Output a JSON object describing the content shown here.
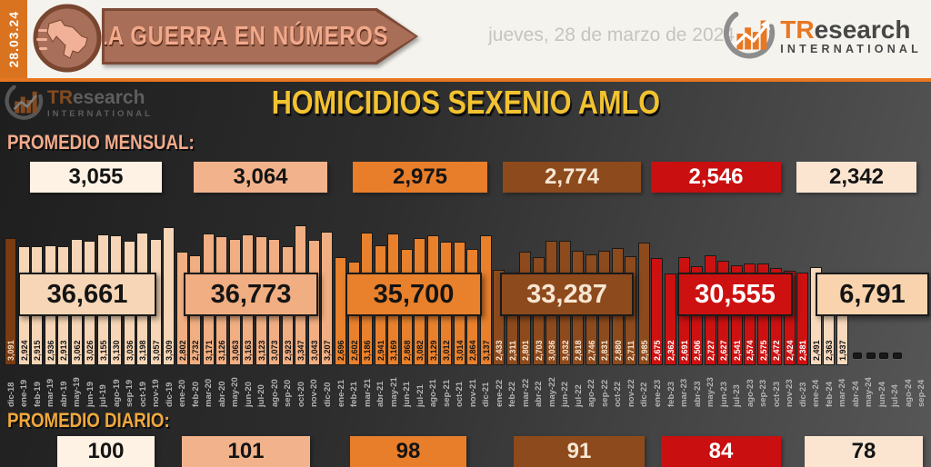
{
  "header": {
    "date_vertical": "28.03.24",
    "banner_title": "LA GUERRA EN NÚMEROS",
    "date_long": "jueves, 28 de marzo de 2024",
    "brand": {
      "tr": "TR",
      "rest": "esearch",
      "subtitle": "INTERNATIONAL"
    }
  },
  "main": {
    "title": "HOMICIDIOS SEXENIO AMLO",
    "monthly_avg_label": "PROMEDIO MENSUAL:",
    "daily_avg_label": "PROMEDIO DIARIO:"
  },
  "chart_data": {
    "type": "bar",
    "title": "HOMICIDIOS SEXENIO AMLO",
    "x_labels": [
      "dic-18",
      "ene-19",
      "feb-19",
      "mar-19",
      "abr-19",
      "may-19",
      "jun-19",
      "jul-19",
      "ago-19",
      "sep-19",
      "oct-19",
      "nov-19",
      "dic-19",
      "ene-20",
      "feb-20",
      "mar-20",
      "abr-20",
      "may-20",
      "jun-20",
      "jul-20",
      "ago-20",
      "sep-20",
      "oct-20",
      "nov-20",
      "dic-20",
      "ene-21",
      "feb-21",
      "mar-21",
      "abr-21",
      "may-21",
      "jun-21",
      "jul-21",
      "ago-21",
      "sep-21",
      "oct-21",
      "nov-21",
      "dic-21",
      "ene-22",
      "feb-22",
      "mar-22",
      "abr-22",
      "may-22",
      "jun-22",
      "jul-22",
      "ago-22",
      "sep-22",
      "oct-22",
      "nov-22",
      "dic-22",
      "ene-23",
      "feb-23",
      "mar-23",
      "abr-23",
      "may-23",
      "jun-23",
      "jul-23",
      "ago-23",
      "sep-23",
      "oct-23",
      "nov-23",
      "dic-23",
      "ene-24",
      "feb-24",
      "mar-24",
      "abr-24",
      "may-24",
      "jun-24",
      "jul-24",
      "ago-24",
      "sep-24"
    ],
    "bars": [
      {
        "month": "dic-18",
        "value": 3091
      },
      {
        "month": "ene-19",
        "value": 2924
      },
      {
        "month": "feb-19",
        "value": 2915
      },
      {
        "month": "mar-19",
        "value": 2936
      },
      {
        "month": "abr-19",
        "value": 2913
      },
      {
        "month": "may-19",
        "value": 3062
      },
      {
        "month": "jun-19",
        "value": 3026
      },
      {
        "month": "jul-19",
        "value": 3155
      },
      {
        "month": "ago-19",
        "value": 3130
      },
      {
        "month": "sep-19",
        "value": 3036
      },
      {
        "month": "oct-19",
        "value": 3198
      },
      {
        "month": "nov-19",
        "value": 3057
      },
      {
        "month": "dic-19",
        "value": 3309
      },
      {
        "month": "ene-20",
        "value": 2802
      },
      {
        "month": "feb-20",
        "value": 2732
      },
      {
        "month": "mar-20",
        "value": 3171
      },
      {
        "month": "abr-20",
        "value": 3126
      },
      {
        "month": "may-20",
        "value": 3063
      },
      {
        "month": "jun-20",
        "value": 3163
      },
      {
        "month": "jul-20",
        "value": 3123
      },
      {
        "month": "ago-20",
        "value": 3073
      },
      {
        "month": "sep-20",
        "value": 2923
      },
      {
        "month": "oct-20",
        "value": 3347
      },
      {
        "month": "nov-20",
        "value": 3043
      },
      {
        "month": "dic-20",
        "value": 3207
      },
      {
        "month": "ene-21",
        "value": 2696
      },
      {
        "month": "feb-21",
        "value": 2602
      },
      {
        "month": "mar-21",
        "value": 3186
      },
      {
        "month": "abr-21",
        "value": 2941
      },
      {
        "month": "may-21",
        "value": 3169
      },
      {
        "month": "jun-21",
        "value": 2868
      },
      {
        "month": "jul-21",
        "value": 3082
      },
      {
        "month": "ago-21",
        "value": 3129
      },
      {
        "month": "sep-21",
        "value": 3012
      },
      {
        "month": "oct-21",
        "value": 3014
      },
      {
        "month": "nov-21",
        "value": 2864
      },
      {
        "month": "dic-21",
        "value": 3137
      },
      {
        "month": "ene-22",
        "value": 2433
      },
      {
        "month": "feb-22",
        "value": 2311
      },
      {
        "month": "mar-22",
        "value": 2801
      },
      {
        "month": "abr-22",
        "value": 2703
      },
      {
        "month": "may-22",
        "value": 3036
      },
      {
        "month": "jun-22",
        "value": 3032
      },
      {
        "month": "jul-22",
        "value": 2818
      },
      {
        "month": "ago-22",
        "value": 2746
      },
      {
        "month": "sep-22",
        "value": 2831
      },
      {
        "month": "oct-22",
        "value": 2880
      },
      {
        "month": "nov-22",
        "value": 2711
      },
      {
        "month": "dic-22",
        "value": 2985
      },
      {
        "month": "ene-23",
        "value": 2675
      },
      {
        "month": "feb-23",
        "value": 2362
      },
      {
        "month": "mar-23",
        "value": 2691
      },
      {
        "month": "abr-23",
        "value": 2506
      },
      {
        "month": "may-23",
        "value": 2727
      },
      {
        "month": "jun-23",
        "value": 2627
      },
      {
        "month": "jul-23",
        "value": 2541
      },
      {
        "month": "ago-23",
        "value": 2574
      },
      {
        "month": "sep-23",
        "value": 2575
      },
      {
        "month": "oct-23",
        "value": 2472
      },
      {
        "month": "nov-23",
        "value": 2424
      },
      {
        "month": "dic-23",
        "value": 2381
      },
      {
        "month": "ene-24",
        "value": 2491
      },
      {
        "month": "feb-24",
        "value": 2363
      },
      {
        "month": "mar-24",
        "value": 1937
      }
    ],
    "placeholder_months": [
      "abr-24",
      "may-24",
      "jun-24",
      "jul-24"
    ],
    "year_totals": [
      {
        "year": "2019",
        "value": 36661,
        "bg": "#f6d6b6",
        "fg": "#141414"
      },
      {
        "year": "2020",
        "value": 36773,
        "bg": "#f0ae82",
        "fg": "#141414"
      },
      {
        "year": "2021",
        "value": 35700,
        "bg": "#e8802c",
        "fg": "#141414"
      },
      {
        "year": "2022",
        "value": 33287,
        "bg": "#8d4a1d",
        "fg": "#f7e6d2"
      },
      {
        "year": "2023",
        "value": 30555,
        "bg": "#cd1111",
        "fg": "#ffffff"
      },
      {
        "year": "2024",
        "value": 6791,
        "bg": "#f8d3ae",
        "fg": "#141414"
      }
    ],
    "monthly_averages": [
      {
        "value": 3055,
        "palette": "cream"
      },
      {
        "value": 3064,
        "palette": "peach"
      },
      {
        "value": 2975,
        "palette": "orange"
      },
      {
        "value": 2774,
        "palette": "brown"
      },
      {
        "value": 2546,
        "palette": "red"
      },
      {
        "value": 2342,
        "palette": "light"
      }
    ],
    "daily_averages": [
      {
        "value": 100,
        "palette": "cream"
      },
      {
        "value": 101,
        "palette": "peach"
      },
      {
        "value": 98,
        "palette": "orange"
      },
      {
        "value": 91,
        "palette": "brown"
      },
      {
        "value": 84,
        "palette": "red"
      },
      {
        "value": 78,
        "palette": "light"
      }
    ],
    "box_palette": {
      "cream": {
        "bg": "#fdf2e3",
        "fg": "#141414"
      },
      "peach": {
        "bg": "#f2b38c",
        "fg": "#141414"
      },
      "orange": {
        "bg": "#e87d2a",
        "fg": "#141414"
      },
      "brown": {
        "bg": "#8d4a1d",
        "fg": "#f7e6d2"
      },
      "red": {
        "bg": "#c90f0f",
        "fg": "#ffffff"
      },
      "light": {
        "bg": "#fbe5d1",
        "fg": "#141414"
      }
    },
    "year_palette": {
      "2018": {
        "bg": "#7a3b12",
        "fg": "#f3ddc3"
      },
      "2019": {
        "bg": "#f6d6b6",
        "fg": "#141414"
      },
      "2020": {
        "bg": "#f0ae82",
        "fg": "#141414"
      },
      "2021": {
        "bg": "#e8802c",
        "fg": "#141414"
      },
      "2022": {
        "bg": "#8d4a1d",
        "fg": "#f7e6d2"
      },
      "2023": {
        "bg": "#cd1111",
        "fg": "#ffffff"
      },
      "2024": {
        "bg": "#f8d9bd",
        "fg": "#141414"
      }
    },
    "legend_position": "none",
    "grid": false
  }
}
